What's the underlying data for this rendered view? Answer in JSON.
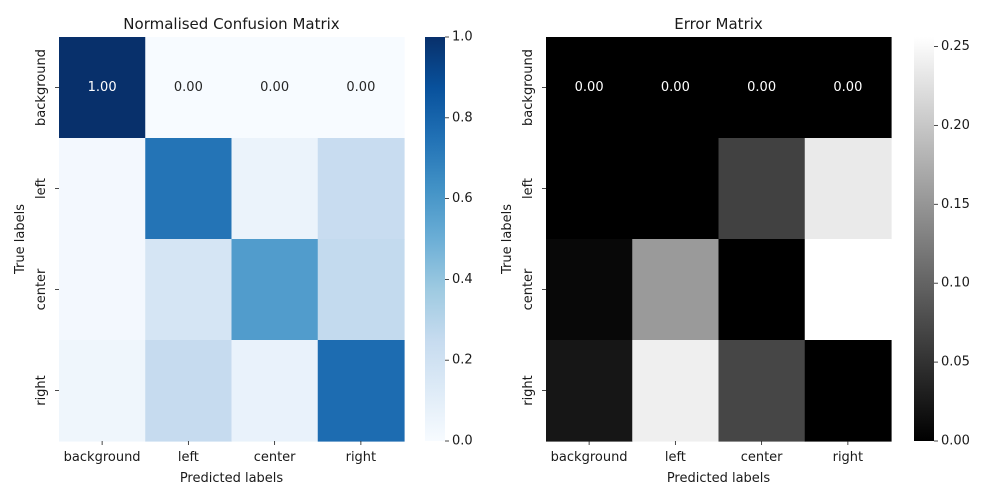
{
  "chart_data": [
    {
      "type": "heatmap",
      "title": "Normalised Confusion Matrix",
      "xlabel": "Predicted labels",
      "ylabel": "True labels",
      "x_categories": [
        "background",
        "left",
        "center",
        "right"
      ],
      "y_categories": [
        "background",
        "left",
        "center",
        "right"
      ],
      "values": [
        [
          1.0,
          0.0,
          0.0,
          0.0
        ],
        [
          0.02,
          0.74,
          0.06,
          0.24
        ],
        [
          0.02,
          0.17,
          0.58,
          0.26
        ],
        [
          0.04,
          0.25,
          0.07,
          0.77
        ]
      ],
      "annotations": [
        "1.00",
        "0.00",
        "0.00",
        "0.00"
      ],
      "colormap": "Blues",
      "colormap_stops": [
        "#f7fbff",
        "#deebf7",
        "#c6dbef",
        "#9ecae1",
        "#6baed6",
        "#4292c6",
        "#2171b5",
        "#08519c",
        "#08306b"
      ],
      "vmin": 0,
      "vmax": 1,
      "colorbar_ticks": [
        "0.0",
        "0.2",
        "0.4",
        "0.6",
        "0.8",
        "1.0"
      ],
      "colorbar_tick_values": [
        0,
        0.2,
        0.4,
        0.6,
        0.8,
        1.0
      ],
      "grid": false
    },
    {
      "type": "heatmap",
      "title": "Error Matrix",
      "xlabel": "Predicted labels",
      "ylabel": "True labels",
      "x_categories": [
        "background",
        "left",
        "center",
        "right"
      ],
      "y_categories": [
        "background",
        "left",
        "center",
        "right"
      ],
      "values": [
        [
          0.0,
          0.0,
          0.0,
          0.0
        ],
        [
          0.0,
          0.0,
          0.065,
          0.235
        ],
        [
          0.008,
          0.155,
          0.0,
          0.26
        ],
        [
          0.022,
          0.24,
          0.07,
          0.0
        ]
      ],
      "annotations": [
        "0.00",
        "0.00",
        "0.00",
        "0.00"
      ],
      "colormap": "gray",
      "colormap_stops": [
        "#000000",
        "#ffffff"
      ],
      "vmin": 0,
      "vmax": 0.256,
      "colorbar_ticks": [
        "0.00",
        "0.05",
        "0.10",
        "0.15",
        "0.20",
        "0.25"
      ],
      "colorbar_tick_values": [
        0,
        0.05,
        0.1,
        0.15,
        0.2,
        0.25
      ],
      "grid": false
    }
  ]
}
